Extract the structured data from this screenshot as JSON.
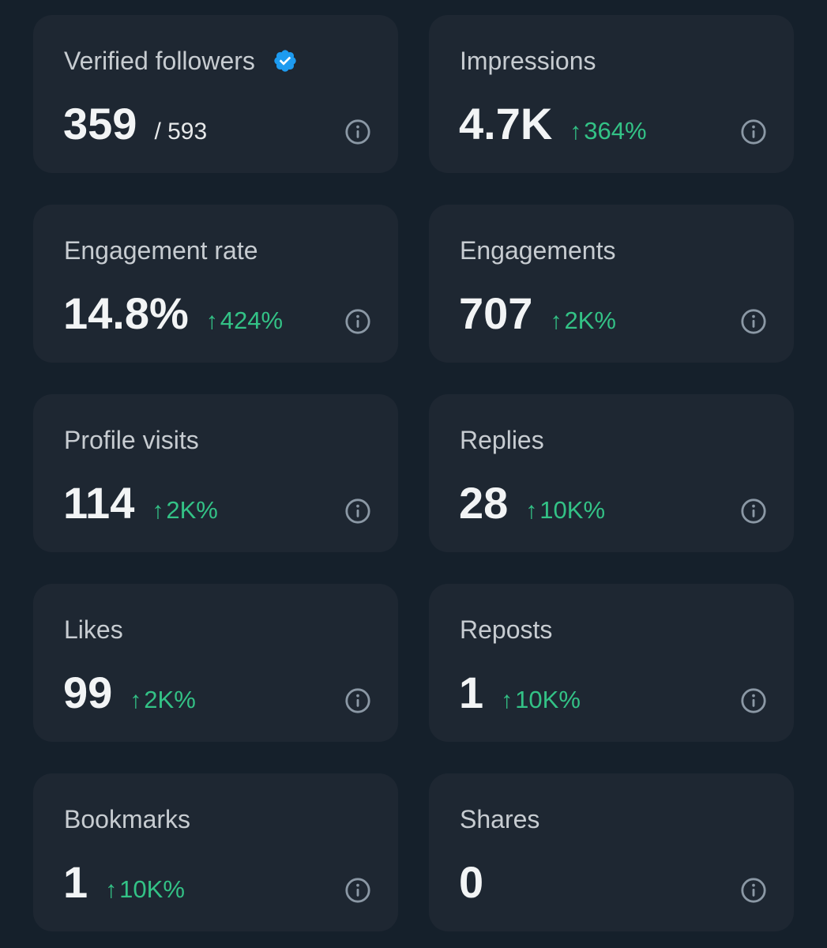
{
  "colors": {
    "background": "#15202b",
    "card": "#1e2732",
    "label": "#c7ccd1",
    "value": "#f2f4f5",
    "positive": "#33c286",
    "verified_badge": "#1d9bf0",
    "info_icon": "#8b98a5"
  },
  "metrics": [
    {
      "label": "Verified followers",
      "value": "359",
      "total": "/ 593",
      "change": "",
      "icon": "verified-badge-icon"
    },
    {
      "label": "Impressions",
      "value": "4.7K",
      "change": "364%"
    },
    {
      "label": "Engagement rate",
      "value": "14.8%",
      "change": "424%"
    },
    {
      "label": "Engagements",
      "value": "707",
      "change": "2K%"
    },
    {
      "label": "Profile visits",
      "value": "114",
      "change": "2K%"
    },
    {
      "label": "Replies",
      "value": "28",
      "change": "10K%"
    },
    {
      "label": "Likes",
      "value": "99",
      "change": "2K%"
    },
    {
      "label": "Reposts",
      "value": "1",
      "change": "10K%"
    },
    {
      "label": "Bookmarks",
      "value": "1",
      "change": "10K%"
    },
    {
      "label": "Shares",
      "value": "0",
      "change": ""
    }
  ],
  "change_arrow": "↑",
  "info_icon": "info-circle-icon"
}
